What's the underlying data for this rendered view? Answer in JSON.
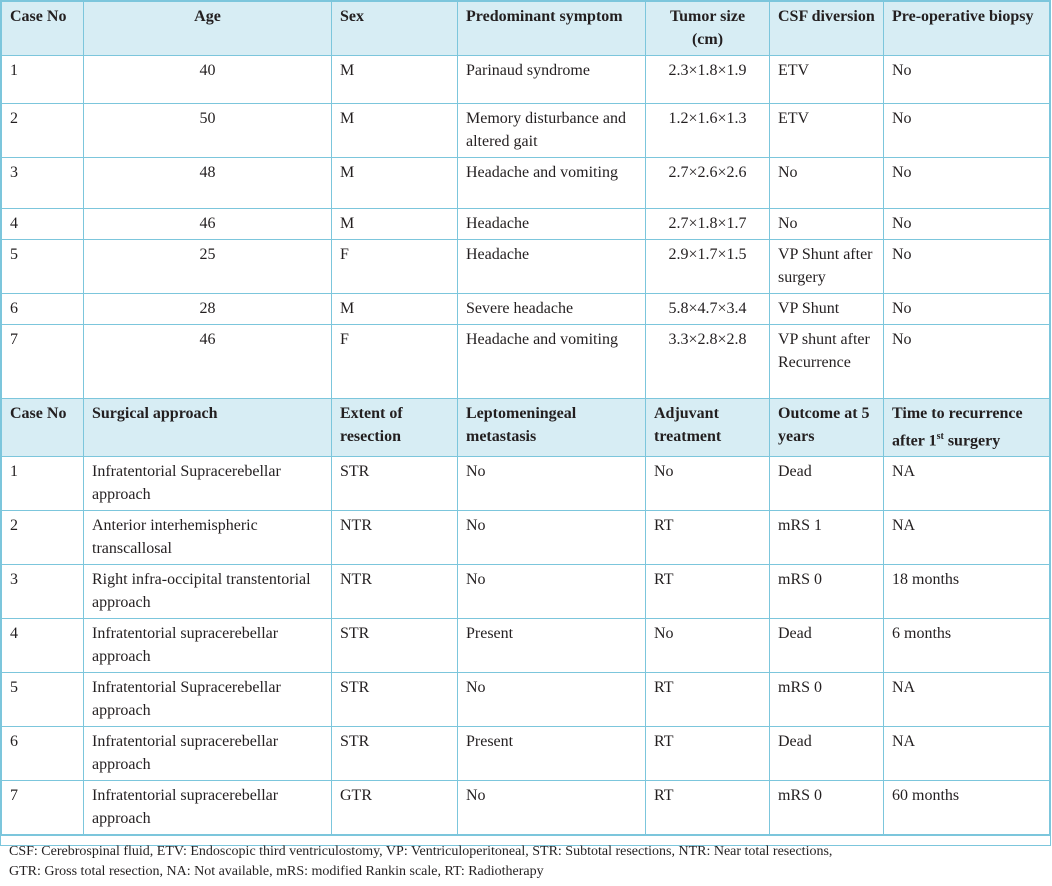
{
  "table1": {
    "headers": [
      "Case No",
      "Age",
      "Sex",
      "Predominant symptom",
      "Tumor size (cm)",
      "CSF diversion",
      "Pre-operative biopsy"
    ],
    "rows": [
      [
        "1",
        "40",
        "M",
        "Parinaud syndrome",
        "2.3×1.8×1.9",
        "ETV",
        "No"
      ],
      [
        "2",
        "50",
        "M",
        "Memory disturbance and altered gait",
        "1.2×1.6×1.3",
        "ETV",
        "No"
      ],
      [
        "3",
        "48",
        "M",
        "Headache and vomiting",
        "2.7×2.6×2.6",
        "No",
        "No"
      ],
      [
        "4",
        "46",
        "M",
        "Headache",
        "2.7×1.8×1.7",
        "No",
        "No"
      ],
      [
        "5",
        "25",
        "F",
        "Headache",
        "2.9×1.7×1.5",
        "VP Shunt after surgery",
        "No"
      ],
      [
        "6",
        "28",
        "M",
        "Severe headache",
        "5.8×4.7×3.4",
        "VP Shunt",
        "No"
      ],
      [
        "7",
        "46",
        "F",
        "Headache and vomiting",
        "3.3×2.8×2.8",
        "VP shunt after Recurrence",
        "No"
      ]
    ]
  },
  "table2": {
    "headers": [
      "Case No",
      "Surgical approach",
      "Extent of resection",
      "Leptomeningeal metastasis",
      "Adjuvant treatment",
      "Outcome at 5 years",
      "Time to recurrence after 1st surgery"
    ],
    "header_last_parts": {
      "pre": "Time to recurrence after 1",
      "sup": "st",
      "post": " surgery"
    },
    "rows": [
      [
        "1",
        "Infratentorial Supracerebellar approach",
        "STR",
        "No",
        "No",
        "Dead",
        "NA"
      ],
      [
        "2",
        "Anterior interhemispheric transcallosal",
        "NTR",
        "No",
        "RT",
        "mRS 1",
        "NA"
      ],
      [
        "3",
        "Right infra-occipital transtentorial approach",
        "NTR",
        "No",
        "RT",
        "mRS 0",
        "18 months"
      ],
      [
        "4",
        "Infratentorial supracerebellar approach",
        "STR",
        "Present",
        "No",
        "Dead",
        "6 months"
      ],
      [
        "5",
        "Infratentorial Supracerebellar approach",
        "STR",
        "No",
        "RT",
        "mRS 0",
        "NA"
      ],
      [
        "6",
        "Infratentorial supracerebellar approach",
        "STR",
        "Present",
        "RT",
        "Dead",
        "NA"
      ],
      [
        "7",
        "Infratentorial supracerebellar approach",
        "GTR",
        "No",
        "RT",
        "mRS 0",
        "60 months"
      ]
    ]
  },
  "footnote": {
    "line1": "CSF: Cerebrospinal fluid, ETV: Endoscopic third ventriculostomy, VP: Ventriculoperitoneal, STR: Subtotal resections, NTR: Near total resections,",
    "line2": "GTR: Gross total resection, NA: Not available, mRS: modified Rankin scale, RT: Radiotherapy"
  },
  "colors": {
    "header_bg": "#d7edf4",
    "border": "#7cc6dc",
    "text": "#231f20"
  }
}
